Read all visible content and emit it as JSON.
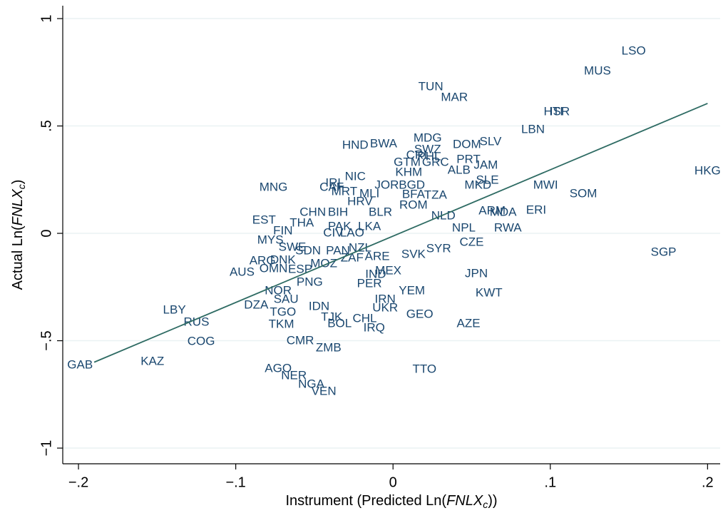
{
  "chart_data": {
    "type": "scatter",
    "x_label": [
      "Instrument (Predicted Ln(",
      "FNLX",
      "c",
      "))"
    ],
    "y_label": [
      "Actual Ln(",
      "FNLX",
      "c",
      ")"
    ],
    "color": "#1a476f",
    "labels": [
      "LSO",
      "MUS",
      "TUN",
      "MAR",
      "HTI",
      "ISR",
      "LBN",
      "MDG",
      "HND",
      "BWA",
      "DOM",
      "SLV",
      "SWZ",
      "CRI",
      "PHL",
      "GTM",
      "GRC",
      "PRT",
      "JAM",
      "ALB",
      "KHM",
      "NIC",
      "SLE",
      "MNG",
      "IRL",
      "CAF",
      "JOR",
      "BGD",
      "MKD",
      "MWI",
      "MRT",
      "MLI",
      "BFA",
      "TZA",
      "SOM",
      "HKG",
      "ROM",
      "ARM",
      "MDA",
      "ERI",
      "CHN",
      "BIH",
      "BLR",
      "NLD",
      "EST",
      "THA",
      "PAK",
      "LKA",
      "FIN",
      "CIV",
      "LAO",
      "NPL",
      "RWA",
      "HRV",
      "MYS",
      "SWE",
      "SDN",
      "PAN",
      "NZL",
      "CZE",
      "SYR",
      "SVK",
      "ARE",
      "ARG",
      "DNK",
      "OMN",
      "ESP",
      "MOZ",
      "ZAF",
      "MEX",
      "AUS",
      "IND",
      "JPN",
      "PNG",
      "PER",
      "NOR",
      "YEM",
      "KWT",
      "SAU",
      "IRN",
      "DZA",
      "LBY",
      "IDN",
      "UKR",
      "GEO",
      "TGO",
      "TJK",
      "CHL",
      "RUS",
      "BOL",
      "TKM",
      "AZE",
      "IRQ",
      "COG",
      "CMR",
      "ZMB",
      "GAB",
      "KAZ",
      "AGO",
      "TTO",
      "NER",
      "NGA",
      "VEN",
      "SGP"
    ],
    "x": [
      0.153,
      0.13,
      0.024,
      0.039,
      0.102,
      0.106,
      0.089,
      0.022,
      -0.024,
      -0.006,
      0.047,
      0.062,
      0.022,
      0.015,
      0.023,
      0.009,
      0.027,
      0.048,
      0.059,
      0.042,
      0.01,
      -0.024,
      0.06,
      -0.076,
      -0.037,
      -0.039,
      -0.004,
      0.012,
      0.054,
      0.097,
      -0.031,
      -0.015,
      0.013,
      0.027,
      0.121,
      0.2,
      0.013,
      0.063,
      0.07,
      0.091,
      -0.051,
      -0.035,
      -0.008,
      0.032,
      -0.082,
      -0.058,
      -0.034,
      -0.015,
      -0.07,
      -0.038,
      -0.026,
      0.045,
      0.073,
      -0.021,
      -0.078,
      -0.064,
      -0.054,
      -0.035,
      -0.021,
      0.05,
      0.029,
      0.013,
      -0.01,
      -0.083,
      -0.07,
      -0.076,
      -0.059,
      -0.044,
      -0.026,
      -0.003,
      -0.096,
      -0.011,
      0.053,
      -0.053,
      -0.015,
      -0.073,
      0.012,
      0.061,
      -0.068,
      -0.005,
      -0.087,
      -0.139,
      -0.047,
      -0.005,
      0.017,
      -0.07,
      -0.039,
      -0.018,
      -0.125,
      -0.034,
      -0.071,
      0.048,
      -0.012,
      -0.122,
      -0.059,
      -0.041,
      -0.199,
      -0.153,
      -0.073,
      0.02,
      -0.063,
      -0.052,
      -0.044,
      0.172
    ],
    "y": [
      0.847,
      0.754,
      0.681,
      0.631,
      0.565,
      0.565,
      0.482,
      0.442,
      0.409,
      0.415,
      0.412,
      0.425,
      0.389,
      0.362,
      0.355,
      0.329,
      0.329,
      0.342,
      0.316,
      0.292,
      0.282,
      0.262,
      0.246,
      0.213,
      0.233,
      0.213,
      0.223,
      0.223,
      0.223,
      0.223,
      0.193,
      0.183,
      0.179,
      0.176,
      0.183,
      0.289,
      0.13,
      0.103,
      0.096,
      0.106,
      0.096,
      0.096,
      0.096,
      0.08,
      0.06,
      0.047,
      0.03,
      0.03,
      0.01,
      0.0,
      0.0,
      0.023,
      0.023,
      0.146,
      -0.033,
      -0.066,
      -0.083,
      -0.083,
      -0.07,
      -0.043,
      -0.073,
      -0.1,
      -0.11,
      -0.13,
      -0.126,
      -0.166,
      -0.17,
      -0.143,
      -0.116,
      -0.176,
      -0.183,
      -0.193,
      -0.189,
      -0.229,
      -0.236,
      -0.269,
      -0.269,
      -0.279,
      -0.309,
      -0.309,
      -0.336,
      -0.359,
      -0.342,
      -0.349,
      -0.379,
      -0.369,
      -0.392,
      -0.399,
      -0.415,
      -0.422,
      -0.425,
      -0.422,
      -0.442,
      -0.505,
      -0.502,
      -0.535,
      -0.615,
      -0.598,
      -0.631,
      -0.635,
      -0.664,
      -0.704,
      -0.738,
      -0.09
    ],
    "fit": {
      "color": "#2e6b63",
      "x": [
        -0.19,
        0.2
      ],
      "y": [
        -0.6,
        0.605
      ]
    },
    "xlim": [
      -0.21,
      0.208
    ],
    "ylim": [
      -1.073,
      1.06
    ],
    "xticks": [
      {
        "value": -0.2,
        "label": "−.2"
      },
      {
        "value": -0.1,
        "label": "−.1"
      },
      0,
      {
        "value": 0.1,
        "label": ".1"
      },
      {
        "value": 0.2,
        "label": ".2"
      }
    ],
    "yticks": [
      {
        "value": -1,
        "label": "−1"
      },
      {
        "value": -0.5,
        "label": "−.5"
      },
      0,
      {
        "value": 0.5,
        "label": ".5"
      },
      1
    ],
    "grid": true
  }
}
